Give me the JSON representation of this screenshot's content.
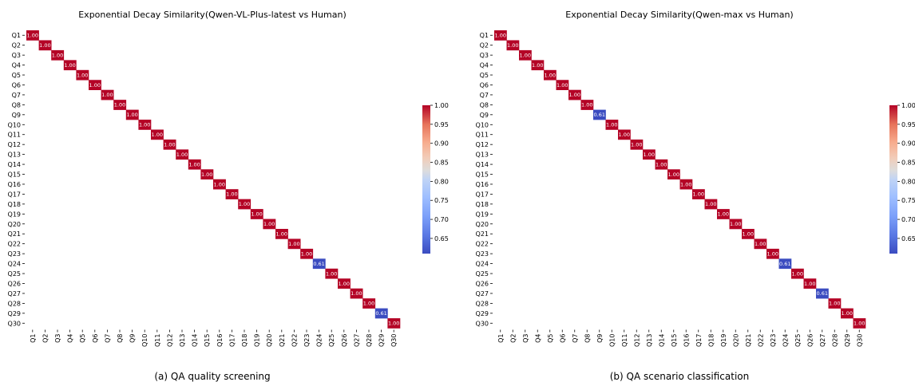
{
  "chart_data": [
    {
      "type": "heatmap",
      "title": "Exponential Decay Similarity(Qwen-VL-Plus-latest vs Human)",
      "caption": "(a) QA quality screening",
      "rows": [
        "Q1",
        "Q2",
        "Q3",
        "Q4",
        "Q5",
        "Q6",
        "Q7",
        "Q8",
        "Q9",
        "Q10",
        "Q11",
        "Q12",
        "Q13",
        "Q14",
        "Q15",
        "Q16",
        "Q17",
        "Q18",
        "Q19",
        "Q20",
        "Q21",
        "Q22",
        "Q23",
        "Q24",
        "Q25",
        "Q26",
        "Q27",
        "Q28",
        "Q29",
        "Q30"
      ],
      "columns": [
        "Q1",
        "Q2",
        "Q3",
        "Q4",
        "Q5",
        "Q6",
        "Q7",
        "Q8",
        "Q9",
        "Q10",
        "Q11",
        "Q12",
        "Q13",
        "Q14",
        "Q15",
        "Q16",
        "Q17",
        "Q18",
        "Q19",
        "Q20",
        "Q21",
        "Q22",
        "Q23",
        "Q24",
        "Q25",
        "Q26",
        "Q27",
        "Q28",
        "Q29",
        "Q30"
      ],
      "diagonal_values": [
        1.0,
        1.0,
        1.0,
        1.0,
        1.0,
        1.0,
        1.0,
        1.0,
        1.0,
        1.0,
        1.0,
        1.0,
        1.0,
        1.0,
        1.0,
        1.0,
        1.0,
        1.0,
        1.0,
        1.0,
        1.0,
        1.0,
        1.0,
        0.61,
        1.0,
        1.0,
        1.0,
        1.0,
        0.61,
        1.0
      ],
      "off_diagonal": "blank",
      "colorbar": {
        "min": 0.61,
        "max": 1.0,
        "ticks": [
          "1.00",
          "0.95",
          "0.90",
          "0.85",
          "0.80",
          "0.75",
          "0.70",
          "0.65"
        ],
        "colormap": "coolwarm"
      }
    },
    {
      "type": "heatmap",
      "title": "Exponential Decay Similarity(Qwen-max vs Human)",
      "caption": "(b) QA scenario classification",
      "rows": [
        "Q1",
        "Q2",
        "Q3",
        "Q4",
        "Q5",
        "Q6",
        "Q7",
        "Q8",
        "Q9",
        "Q10",
        "Q11",
        "Q12",
        "Q13",
        "Q14",
        "Q15",
        "Q16",
        "Q17",
        "Q18",
        "Q19",
        "Q20",
        "Q21",
        "Q22",
        "Q23",
        "Q24",
        "Q25",
        "Q26",
        "Q27",
        "Q28",
        "Q29",
        "Q30"
      ],
      "columns": [
        "Q1",
        "Q2",
        "Q3",
        "Q4",
        "Q5",
        "Q6",
        "Q7",
        "Q8",
        "Q9",
        "Q10",
        "Q11",
        "Q12",
        "Q13",
        "Q14",
        "Q15",
        "Q16",
        "Q17",
        "Q18",
        "Q19",
        "Q20",
        "Q21",
        "Q22",
        "Q23",
        "Q24",
        "Q25",
        "Q26",
        "Q27",
        "Q28",
        "Q29",
        "Q30"
      ],
      "diagonal_values": [
        1.0,
        1.0,
        1.0,
        1.0,
        1.0,
        1.0,
        1.0,
        1.0,
        0.61,
        1.0,
        1.0,
        1.0,
        1.0,
        1.0,
        1.0,
        1.0,
        1.0,
        1.0,
        1.0,
        1.0,
        1.0,
        1.0,
        1.0,
        0.61,
        1.0,
        1.0,
        0.61,
        1.0,
        1.0,
        1.0
      ],
      "off_diagonal": "blank",
      "colorbar": {
        "min": 0.61,
        "max": 1.0,
        "ticks": [
          "1.00",
          "0.95",
          "0.90",
          "0.85",
          "0.80",
          "0.75",
          "0.70",
          "0.65"
        ],
        "colormap": "coolwarm"
      }
    }
  ],
  "colors": {
    "high": "#b40426",
    "mid": "#dddddd",
    "low": "#3b4cc0",
    "cell_text": "#ffffff"
  }
}
